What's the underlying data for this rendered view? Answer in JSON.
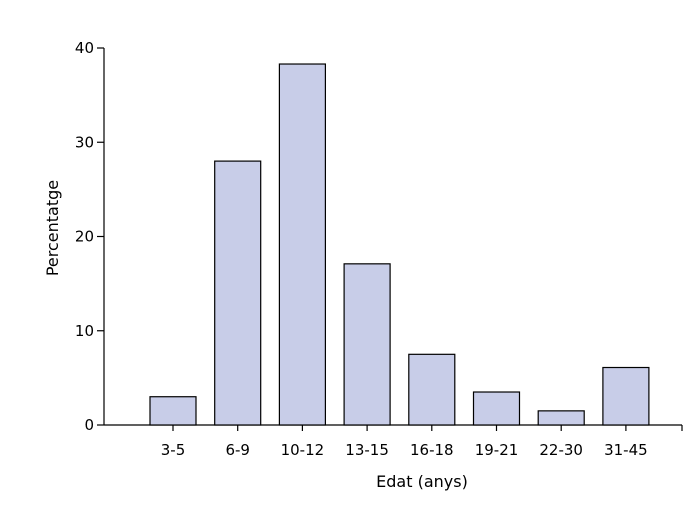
{
  "chart_data": {
    "type": "bar",
    "categories": [
      "3-5",
      "6-9",
      "10-12",
      "13-15",
      "16-18",
      "19-21",
      "22-30",
      "31-45"
    ],
    "values": [
      3,
      28,
      38.3,
      17.1,
      7.5,
      3.5,
      1.5,
      6.1
    ],
    "xlabel": "Edat (anys)",
    "ylabel": "Percentatge",
    "ylim": [
      0,
      40
    ],
    "yticks": [
      0,
      10,
      20,
      30,
      40
    ],
    "grid": false,
    "bar_color": "#c8cde8",
    "bar_edge_color": "#000000"
  }
}
